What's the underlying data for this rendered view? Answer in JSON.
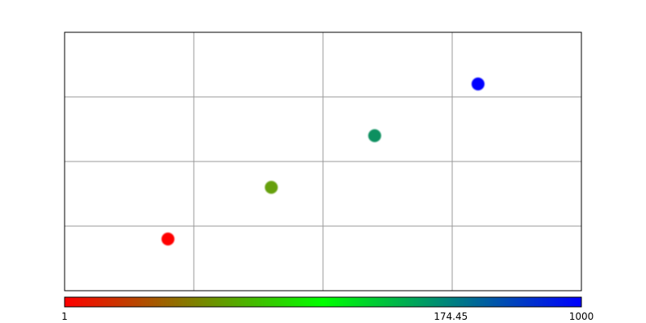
{
  "chart_data": {
    "type": "scatter",
    "title": "",
    "xlabel": "",
    "ylabel": "",
    "xlim": [
      0,
      4
    ],
    "ylim": [
      0,
      4
    ],
    "grid": true,
    "x_ticks_labeled": false,
    "y_ticks_labeled": false,
    "points": [
      {
        "x": 0.8,
        "y": 0.8,
        "value": 1,
        "color": "#ff0000"
      },
      {
        "x": 1.6,
        "y": 1.6,
        "value": 10,
        "color": "#66a010"
      },
      {
        "x": 2.4,
        "y": 2.4,
        "value": 100,
        "color": "#109060"
      },
      {
        "x": 3.2,
        "y": 3.2,
        "value": 1000,
        "color": "#0000ff"
      }
    ],
    "colorbar": {
      "orientation": "horizontal",
      "position": "bottom",
      "scale": "log",
      "min": 1,
      "max": 1000,
      "stops": [
        {
          "value": 0.0,
          "color": "#ff0000"
        },
        {
          "value": 0.5,
          "color": "#00ff00"
        },
        {
          "value": 1.0,
          "color": "#0000ff"
        }
      ],
      "tick_labels": [
        {
          "value": 1,
          "label": "1"
        },
        {
          "value": 174.45,
          "label": "174.45"
        },
        {
          "value": 1000,
          "label": "1000"
        }
      ]
    }
  }
}
